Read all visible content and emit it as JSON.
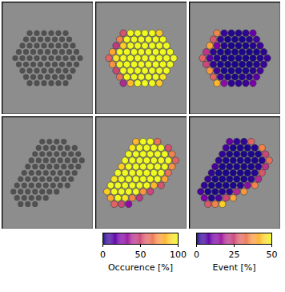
{
  "chart_data": {
    "type": "heatmap",
    "color": "plasma",
    "tick_labels": false,
    "samples": [
      {
        "rows": [
          {
            "x0": 4.5,
            "occurrence": [
              55,
              100,
              100,
              100,
              100,
              90
            ],
            "event": [
              35,
              4,
              2,
              2,
              3,
              10
            ]
          },
          {
            "x0": 4,
            "occurrence": [
              70,
              100,
              100,
              100,
              100,
              100,
              100
            ],
            "event": [
              28,
              3,
              1,
              1,
              1,
              2,
              5
            ]
          },
          {
            "x0": 3.5,
            "occurrence": [
              45,
              90,
              100,
              100,
              100,
              100,
              100,
              100
            ],
            "event": [
              40,
              12,
              2,
              1,
              1,
              1,
              2,
              4
            ]
          },
          {
            "x0": 3,
            "occurrence": [
              80,
              100,
              100,
              100,
              100,
              100,
              100,
              100,
              100
            ],
            "event": [
              22,
              3,
              1,
              1,
              1,
              1,
              1,
              1,
              3
            ]
          },
          {
            "x0": 2.5,
            "occurrence": [
              60,
              95,
              100,
              100,
              100,
              100,
              100,
              100,
              100,
              100
            ],
            "event": [
              30,
              8,
              2,
              1,
              1,
              1,
              1,
              1,
              2,
              4
            ]
          },
          {
            "x0": 3,
            "occurrence": [
              75,
              100,
              100,
              100,
              100,
              100,
              100,
              100,
              100
            ],
            "event": [
              25,
              3,
              1,
              1,
              1,
              1,
              1,
              2,
              4
            ]
          },
          {
            "x0": 3.5,
            "occurrence": [
              50,
              100,
              100,
              100,
              100,
              100,
              100,
              100
            ],
            "event": [
              38,
              5,
              1,
              1,
              1,
              1,
              2,
              5
            ]
          },
          {
            "x0": 4,
            "occurrence": [
              65,
              100,
              100,
              100,
              100,
              100,
              95
            ],
            "event": [
              30,
              4,
              2,
              1,
              2,
              3,
              8
            ]
          },
          {
            "x0": 4.5,
            "occurrence": [
              40,
              85,
              100,
              100,
              100,
              90
            ],
            "event": [
              42,
              15,
              3,
              3,
              4,
              12
            ]
          }
        ]
      },
      {
        "rows": [
          {
            "x0": 5,
            "occurrence": [
              85,
              100,
              100,
              65
            ],
            "event": [
              10,
              3,
              3,
              30
            ]
          },
          {
            "x0": 4.5,
            "occurrence": [
              95,
              100,
              100,
              100,
              100,
              55
            ],
            "event": [
              5,
              1,
              1,
              1,
              2,
              35
            ]
          },
          {
            "x0": 4,
            "occurrence": [
              100,
              100,
              100,
              100,
              100,
              100,
              70
            ],
            "event": [
              3,
              1,
              1,
              1,
              1,
              1,
              25
            ]
          },
          {
            "x0": 3.5,
            "occurrence": [
              100,
              100,
              100,
              100,
              100,
              100,
              100,
              60
            ],
            "event": [
              3,
              1,
              1,
              1,
              1,
              1,
              2,
              32
            ]
          },
          {
            "x0": 3,
            "occurrence": [
              90,
              100,
              100,
              100,
              100,
              100,
              100,
              75
            ],
            "event": [
              6,
              1,
              1,
              1,
              1,
              1,
              2,
              22
            ]
          },
          {
            "x0": 2.5,
            "occurrence": [
              100,
              100,
              100,
              100,
              100,
              100,
              100,
              65
            ],
            "event": [
              3,
              1,
              1,
              1,
              1,
              1,
              2,
              28
            ]
          },
          {
            "x0": 2,
            "occurrence": [
              95,
              100,
              100,
              100,
              100,
              100,
              100,
              80
            ],
            "event": [
              4,
              1,
              1,
              1,
              1,
              1,
              3,
              20
            ]
          },
          {
            "x0": 1.5,
            "occurrence": [
              100,
              100,
              100,
              100,
              100,
              100,
              85,
              55
            ],
            "event": [
              3,
              1,
              1,
              1,
              1,
              2,
              15,
              35
            ]
          },
          {
            "x0": 1,
            "occurrence": [
              90,
              100,
              100,
              100,
              100,
              75,
              50
            ],
            "event": [
              6,
              1,
              1,
              2,
              3,
              20,
              38
            ]
          },
          {
            "x0": 1.5,
            "occurrence": [
              80,
              100,
              95,
              70,
              45
            ],
            "event": [
              12,
              2,
              6,
              25,
              40
            ]
          },
          {
            "x0": 2,
            "occurrence": [
              60,
              50,
              30
            ],
            "event": [
              28,
              35,
              45
            ]
          }
        ]
      }
    ],
    "colorbar_occurrence": {
      "label": "Occurence [%]",
      "range": [
        0,
        100
      ],
      "ticks": [
        0,
        50,
        100
      ]
    },
    "colorbar_event": {
      "label": "Event [%]",
      "range": [
        0,
        50
      ],
      "ticks": [
        0,
        25,
        50
      ]
    }
  }
}
